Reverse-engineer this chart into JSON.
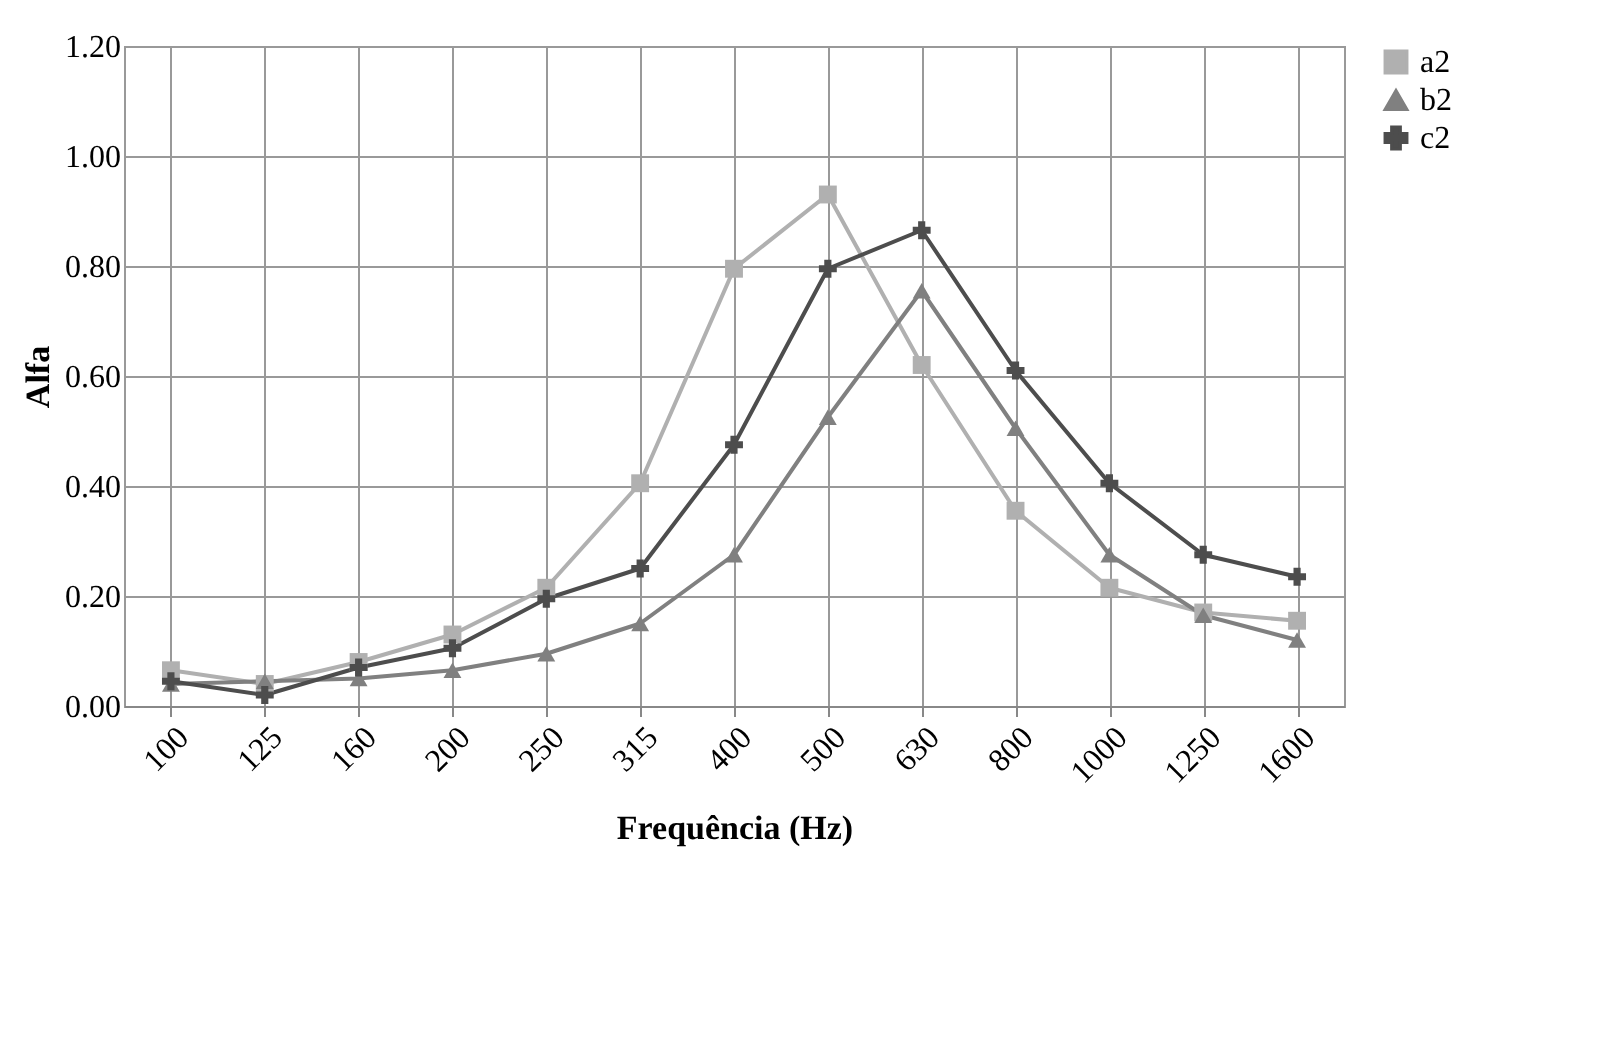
{
  "chart_data": {
    "type": "line",
    "xlabel": "Frequência (Hz)",
    "ylabel": "Alfa",
    "categories": [
      "100",
      "125",
      "160",
      "200",
      "250",
      "315",
      "400",
      "500",
      "630",
      "800",
      "1000",
      "1250",
      "1600"
    ],
    "series": [
      {
        "name": "a2",
        "color": "#b0b0b0",
        "marker": "square",
        "values": [
          0.065,
          0.04,
          0.08,
          0.13,
          0.215,
          0.405,
          0.795,
          0.93,
          0.62,
          0.355,
          0.215,
          0.17,
          0.155
        ]
      },
      {
        "name": "b2",
        "color": "#808080",
        "marker": "triangle",
        "values": [
          0.04,
          0.045,
          0.05,
          0.065,
          0.095,
          0.15,
          0.275,
          0.525,
          0.755,
          0.505,
          0.275,
          0.165,
          0.12
        ]
      },
      {
        "name": "c2",
        "color": "#4d4d4d",
        "marker": "cross",
        "values": [
          0.045,
          0.02,
          0.07,
          0.105,
          0.195,
          0.25,
          0.475,
          0.795,
          0.865,
          0.61,
          0.405,
          0.275,
          0.235
        ]
      }
    ],
    "ylim": [
      0,
      1.2
    ],
    "yticks": [
      {
        "value": 0,
        "label": "0.00"
      },
      {
        "value": 0.2,
        "label": "0.20"
      },
      {
        "value": 0.4,
        "label": "0.40"
      },
      {
        "value": 0.6,
        "label": "0.60"
      },
      {
        "value": 0.8,
        "label": "0.80"
      },
      {
        "value": 1.0,
        "label": "1.00"
      },
      {
        "value": 1.2,
        "label": "1.20"
      }
    ],
    "grid": true,
    "legend": "right",
    "line_style": "solid"
  }
}
